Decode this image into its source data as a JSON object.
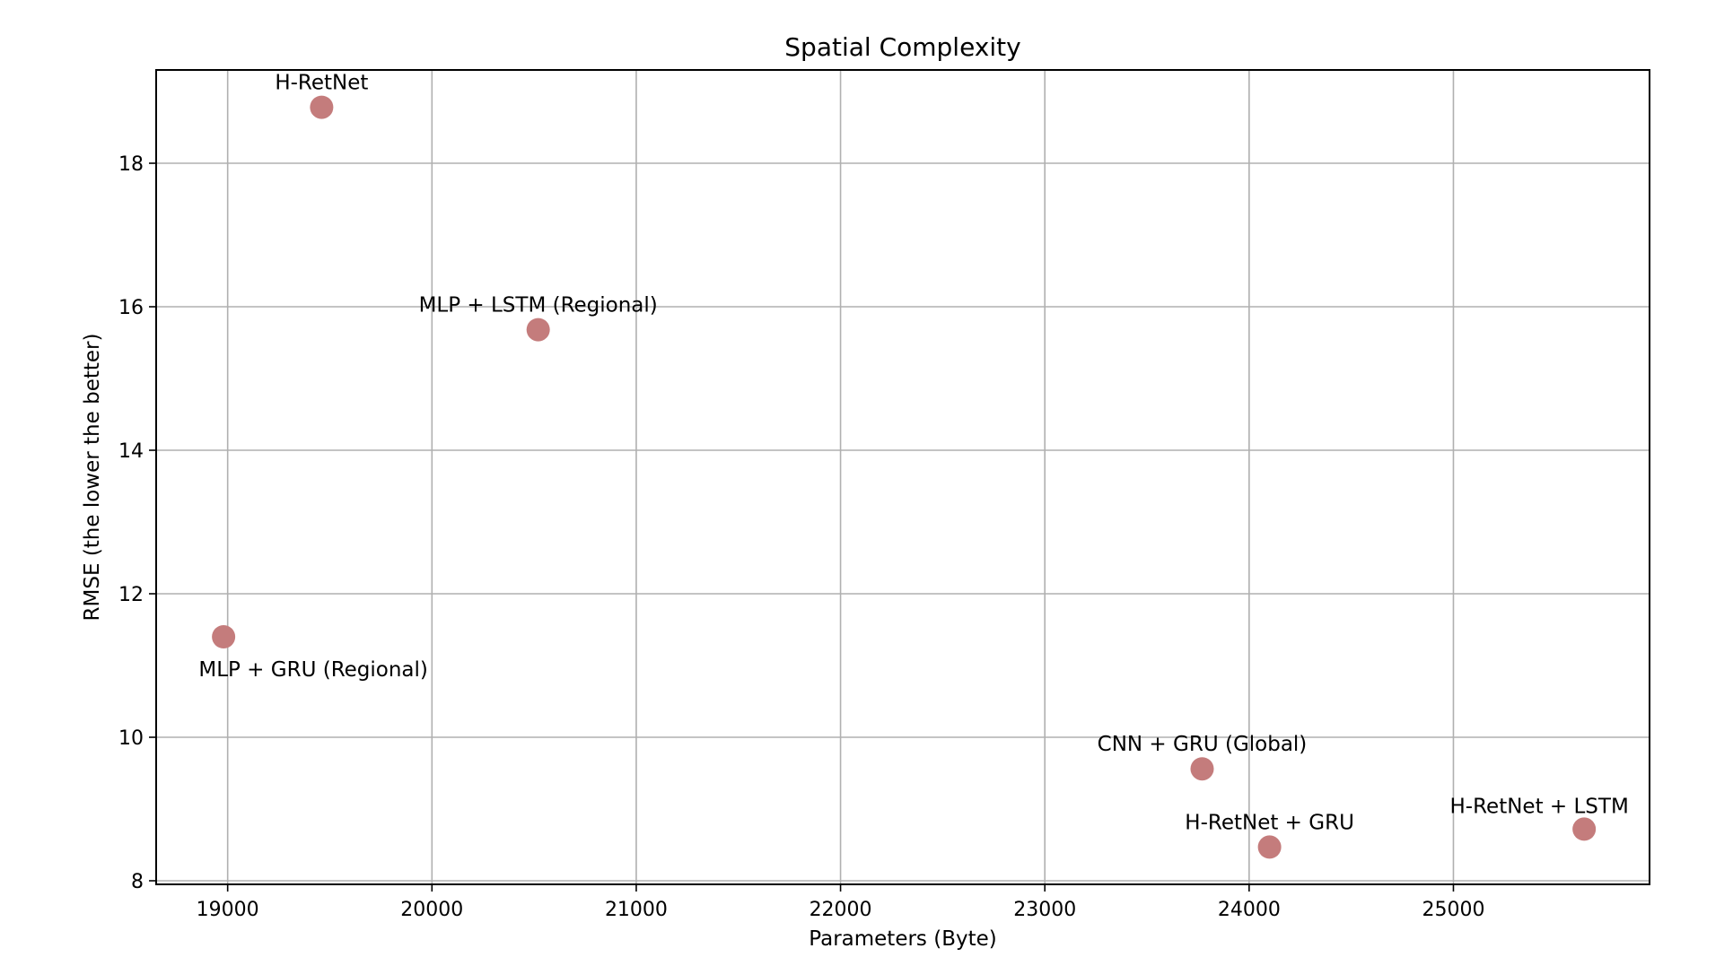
{
  "chart_data": {
    "type": "scatter",
    "title": "Spatial Complexity",
    "xlabel": "Parameters (Byte)",
    "ylabel": "RMSE (the lower the better)",
    "xlim": [
      18650,
      25960
    ],
    "ylim": [
      7.95,
      19.3
    ],
    "xticks": [
      19000,
      20000,
      21000,
      22000,
      23000,
      24000,
      25000
    ],
    "yticks": [
      8,
      10,
      12,
      14,
      16,
      18
    ],
    "grid": true,
    "marker_color": "#c47c7c",
    "points": [
      {
        "label": "H-RetNet",
        "x": 19460,
        "y": 18.78,
        "label_pos": "above"
      },
      {
        "label": "MLP + LSTM (Regional)",
        "x": 20520,
        "y": 15.68,
        "label_pos": "above"
      },
      {
        "label": "MLP + GRU (Regional)",
        "x": 18980,
        "y": 11.4,
        "label_pos": "below-right"
      },
      {
        "label": "CNN + GRU (Global)",
        "x": 23770,
        "y": 9.56,
        "label_pos": "above"
      },
      {
        "label": "H-RetNet + GRU",
        "x": 24100,
        "y": 8.47,
        "label_pos": "above"
      },
      {
        "label": "H-RetNet + LSTM",
        "x": 25640,
        "y": 8.72,
        "label_pos": "above-left"
      }
    ]
  }
}
